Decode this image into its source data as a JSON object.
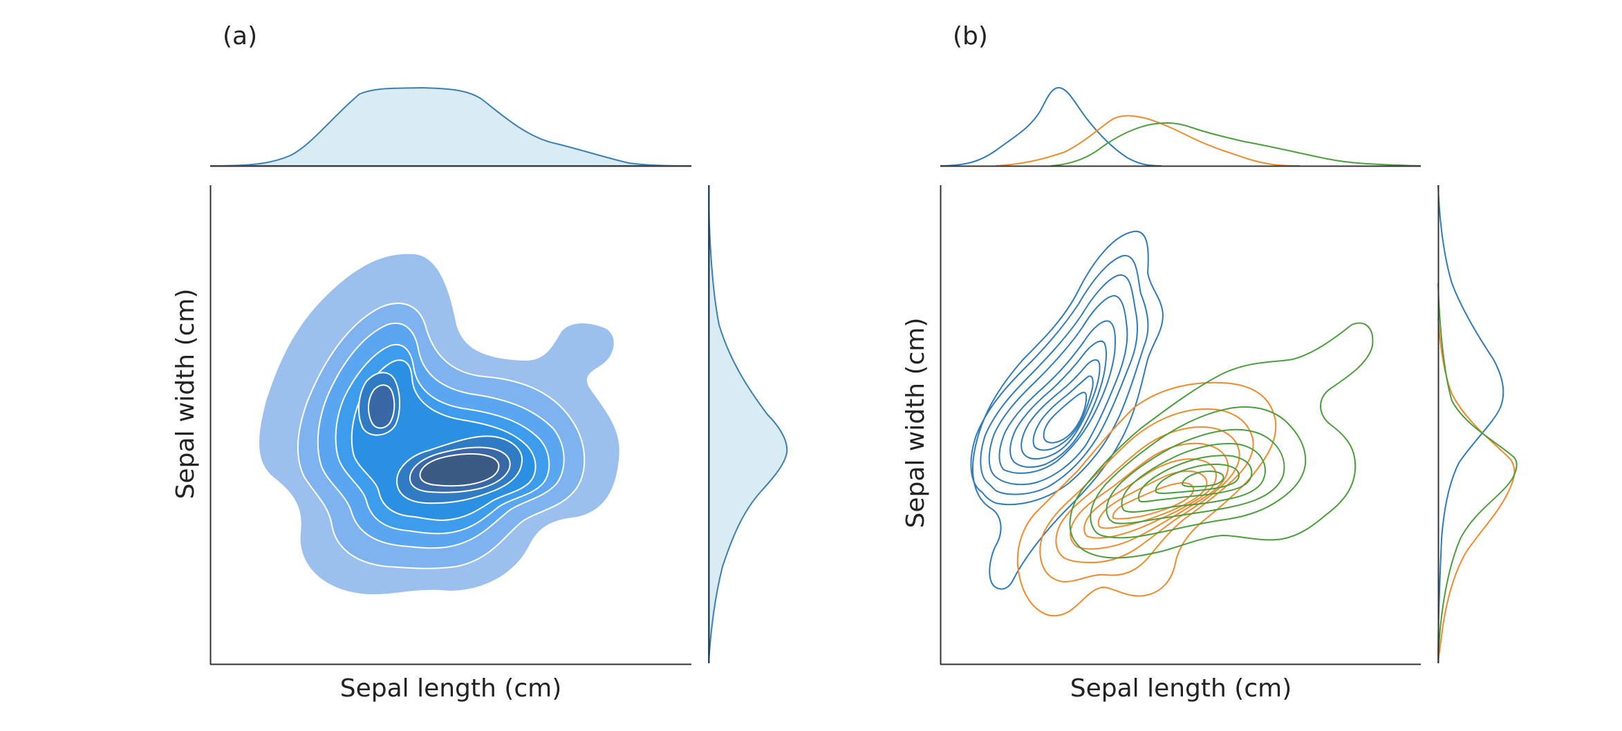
{
  "colors": {
    "axis": "#333333",
    "marginal_fill": "#d9ebf3",
    "marginal_line": "#3a7fb3",
    "fill_levels": [
      "#9cc0ee",
      "#7fb3f0",
      "#5aa6f0",
      "#3d9cec",
      "#2b8fe2",
      "#2f7cc4",
      "#3a67a6",
      "#3b5a84"
    ],
    "setosa": "#2f7ab8",
    "versicolor": "#f08a2c",
    "virginica": "#4a9e3a"
  },
  "panels": [
    {
      "id": "a",
      "tag": "(a)",
      "xlabel": "Sepal length (cm)",
      "ylabel": "Sepal width (cm)"
    },
    {
      "id": "b",
      "tag": "(b)",
      "xlabel": "Sepal length (cm)",
      "ylabel": "Sepal width (cm)"
    }
  ],
  "chart_data": [
    {
      "type": "bivariate kde contour (filled) with marginal kde",
      "title": "(a)",
      "xlabel": "Sepal length (cm)",
      "ylabel": "Sepal width (cm)",
      "xticks": [],
      "yticks": [],
      "grid": false,
      "series": [
        {
          "kind": "joint_density_peaks",
          "peaks": [
            {
              "x": 5.0,
              "y": 3.4,
              "relative_height": 0.85
            },
            {
              "x": 6.3,
              "y": 2.9,
              "relative_height": 1.0
            }
          ]
        },
        {
          "kind": "marginal_x",
          "x": [
            4.2,
            4.6,
            5.0,
            5.4,
            5.8,
            6.2,
            6.6,
            7.0,
            7.4,
            7.8,
            8.2
          ],
          "density": [
            0.02,
            0.18,
            0.62,
            0.95,
            1.0,
            0.95,
            0.55,
            0.28,
            0.14,
            0.05,
            0.01
          ]
        },
        {
          "kind": "marginal_y",
          "y": [
            1.8,
            2.1,
            2.4,
            2.7,
            3.0,
            3.3,
            3.6,
            3.9,
            4.2,
            4.5
          ],
          "density": [
            0.02,
            0.14,
            0.42,
            0.82,
            1.0,
            0.76,
            0.42,
            0.18,
            0.07,
            0.01
          ]
        }
      ]
    },
    {
      "type": "bivariate kde contour (lines, by group) with marginal kde",
      "title": "(b)",
      "xlabel": "Sepal length (cm)",
      "ylabel": "Sepal width (cm)",
      "xticks": [],
      "yticks": [],
      "grid": false,
      "series": [
        {
          "color": "#2f7ab8",
          "center": {
            "x": 5.0,
            "y": 3.4
          },
          "marginal_x": {
            "x": [
              4.2,
              4.6,
              5.0,
              5.4,
              5.8,
              6.2
            ],
            "density": [
              0.02,
              0.45,
              1.0,
              0.5,
              0.08,
              0.0
            ]
          },
          "marginal_y": {
            "y": [
              2.4,
              2.8,
              3.2,
              3.4,
              3.6,
              4.0,
              4.4
            ],
            "density": [
              0.02,
              0.2,
              0.75,
              1.0,
              0.85,
              0.3,
              0.03
            ]
          }
        },
        {
          "color": "#f08a2c",
          "center": {
            "x": 5.9,
            "y": 2.8
          },
          "marginal_x": {
            "x": [
              4.8,
              5.2,
              5.6,
              6.0,
              6.4,
              6.8,
              7.2
            ],
            "density": [
              0.05,
              0.35,
              0.85,
              1.0,
              0.7,
              0.3,
              0.03
            ]
          },
          "marginal_y": {
            "y": [
              2.0,
              2.4,
              2.8,
              3.0,
              3.2,
              3.6
            ],
            "density": [
              0.1,
              0.5,
              1.0,
              0.85,
              0.45,
              0.05
            ]
          }
        },
        {
          "color": "#4a9e3a",
          "center": {
            "x": 6.5,
            "y": 3.0
          },
          "marginal_x": {
            "x": [
              5.2,
              5.8,
              6.2,
              6.6,
              7.0,
              7.4,
              7.8,
              8.0
            ],
            "density": [
              0.05,
              0.35,
              0.8,
              1.0,
              0.75,
              0.45,
              0.15,
              0.04
            ]
          },
          "marginal_y": {
            "y": [
              2.2,
              2.6,
              2.9,
              3.0,
              3.2,
              3.6,
              3.9
            ],
            "density": [
              0.08,
              0.45,
              0.95,
              1.0,
              0.7,
              0.2,
              0.03
            ]
          }
        }
      ]
    }
  ]
}
